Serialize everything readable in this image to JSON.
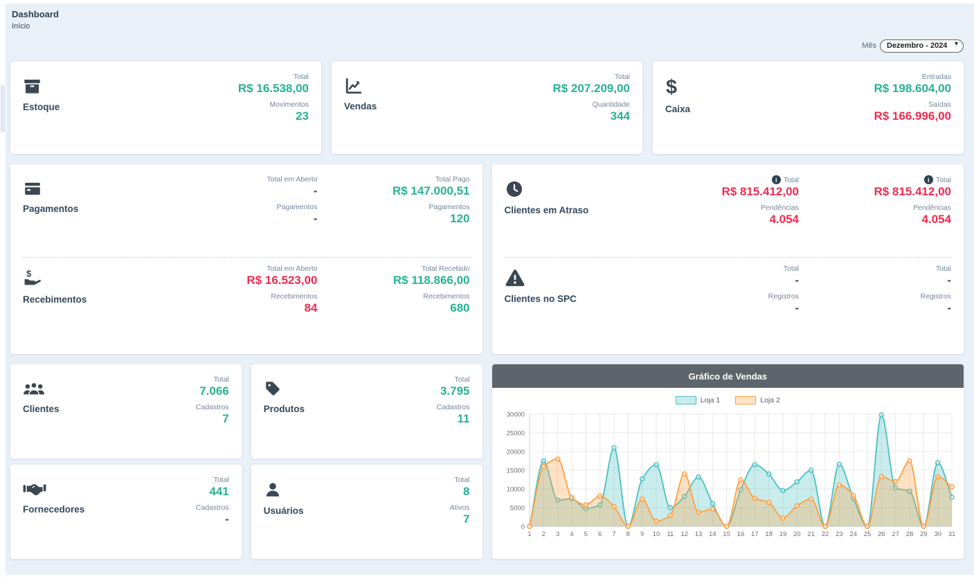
{
  "page": {
    "title": "Dashboard",
    "breadcrumb": "Início"
  },
  "filters": {
    "month_label": "Mês",
    "month_options": [
      "Dezembro - 2024"
    ],
    "month_selected": "Dezembro - 2024"
  },
  "colors": {
    "page_bg": "#e9f0f8",
    "accent_teal": "#27b294",
    "accent_red": "#f12b50",
    "neutral_dark": "#3c4858",
    "icon": "#3b4752",
    "chart_header_bg": "#5d646b",
    "loja1": "#4bc0c0",
    "loja2": "#ff9f40"
  },
  "cards": {
    "estoque": {
      "title": "Estoque",
      "icon": "box-icon",
      "stats": [
        {
          "label": "Total",
          "value": "R$ 16.538,00",
          "tone": "teal"
        },
        {
          "label": "Movimentos",
          "value": "23",
          "tone": "teal"
        }
      ]
    },
    "vendas": {
      "title": "Vendas",
      "icon": "chart-line-icon",
      "stats": [
        {
          "label": "Total",
          "value": "R$ 207.209,00",
          "tone": "teal"
        },
        {
          "label": "Quantidade",
          "value": "344",
          "tone": "teal"
        }
      ]
    },
    "caixa": {
      "title": "Caixa",
      "icon": "dollar-icon",
      "stats": [
        {
          "label": "Entradas",
          "value": "R$ 198.604,00",
          "tone": "teal"
        },
        {
          "label": "Saídas",
          "value": "R$ 166.996,00",
          "tone": "red"
        }
      ]
    },
    "pagamentos": {
      "title": "Pagamentos",
      "icon": "credit-card-icon",
      "columns": [
        [
          {
            "label": "Total em Aberto",
            "value": "-",
            "tone": "dark"
          },
          {
            "label": "Pagamentos",
            "value": "-",
            "tone": "dark"
          }
        ],
        [
          {
            "label": "Total Pago",
            "value": "R$ 147.000,51",
            "tone": "teal"
          },
          {
            "label": "Pagamentos",
            "value": "120",
            "tone": "teal"
          }
        ]
      ]
    },
    "recebimentos": {
      "title": "Recebimentos",
      "icon": "hand-dollar-icon",
      "columns": [
        [
          {
            "label": "Total em Aberto",
            "value": "R$ 16.523,00",
            "tone": "red"
          },
          {
            "label": "Recebimentos",
            "value": "84",
            "tone": "red"
          }
        ],
        [
          {
            "label": "Total Recebido",
            "value": "R$ 118.866,00",
            "tone": "teal"
          },
          {
            "label": "Recebimentos",
            "value": "680",
            "tone": "teal"
          }
        ]
      ]
    },
    "clientes_atraso": {
      "title": "Clientes em Atraso",
      "icon": "clock-icon",
      "columns": [
        [
          {
            "label": "Total",
            "value": "R$ 815.412,00",
            "tone": "red",
            "info": true
          },
          {
            "label": "Pendências",
            "value": "4.054",
            "tone": "red"
          }
        ],
        [
          {
            "label": "Total",
            "value": "R$ 815.412,00",
            "tone": "red",
            "info": true
          },
          {
            "label": "Pendências",
            "value": "4.054",
            "tone": "red"
          }
        ]
      ]
    },
    "clientes_spc": {
      "title": "Clientes no SPC",
      "icon": "warning-icon",
      "columns": [
        [
          {
            "label": "Total",
            "value": "-",
            "tone": "dark"
          },
          {
            "label": "Registros",
            "value": "-",
            "tone": "dark"
          }
        ],
        [
          {
            "label": "Total",
            "value": "-",
            "tone": "dark"
          },
          {
            "label": "Registros",
            "value": "-",
            "tone": "dark"
          }
        ]
      ]
    },
    "clientes": {
      "title": "Clientes",
      "icon": "users-icon",
      "stats": [
        {
          "label": "Total",
          "value": "7.066",
          "tone": "teal"
        },
        {
          "label": "Cadastros",
          "value": "7",
          "tone": "teal"
        }
      ]
    },
    "produtos": {
      "title": "Produtos",
      "icon": "tag-icon",
      "stats": [
        {
          "label": "Total",
          "value": "3.795",
          "tone": "teal"
        },
        {
          "label": "Cadastros",
          "value": "11",
          "tone": "teal"
        }
      ]
    },
    "fornecedores": {
      "title": "Fornecedores",
      "icon": "handshake-icon",
      "stats": [
        {
          "label": "Total",
          "value": "441",
          "tone": "teal"
        },
        {
          "label": "Cadastros",
          "value": "-",
          "tone": "dark"
        }
      ]
    },
    "usuarios": {
      "title": "Usuários",
      "icon": "user-icon",
      "stats": [
        {
          "label": "Total",
          "value": "8",
          "tone": "teal"
        },
        {
          "label": "Ativos",
          "value": "7",
          "tone": "teal"
        }
      ]
    }
  },
  "chart_data": {
    "type": "area",
    "title": "Gráfico de Vendas",
    "x": [
      1,
      2,
      3,
      4,
      5,
      6,
      7,
      8,
      9,
      10,
      11,
      12,
      13,
      14,
      15,
      16,
      17,
      18,
      19,
      20,
      21,
      22,
      23,
      24,
      25,
      26,
      27,
      28,
      29,
      30,
      31
    ],
    "series": [
      {
        "name": "Loja 1",
        "color": "#4bc0c0",
        "values": [
          0,
          17500,
          7000,
          7400,
          4800,
          5800,
          21000,
          0,
          12700,
          16500,
          5000,
          8000,
          13200,
          6100,
          0,
          9800,
          16500,
          14000,
          9600,
          11900,
          15000,
          0,
          16600,
          7500,
          0,
          29800,
          10300,
          9400,
          0,
          17000,
          7800
        ]
      },
      {
        "name": "Loja 2",
        "color": "#ff9f40",
        "values": [
          0,
          16000,
          18000,
          7700,
          5800,
          8100,
          5300,
          0,
          7300,
          1400,
          2900,
          14000,
          3800,
          4600,
          0,
          12400,
          7500,
          6400,
          2200,
          5500,
          7300,
          0,
          11100,
          8300,
          0,
          13300,
          12000,
          17500,
          0,
          13300,
          10600
        ]
      }
    ],
    "ylim": [
      0,
      30000
    ],
    "yticks": [
      0,
      5000,
      10000,
      15000,
      20000,
      25000,
      30000
    ],
    "grid": true,
    "legend_position": "top"
  }
}
